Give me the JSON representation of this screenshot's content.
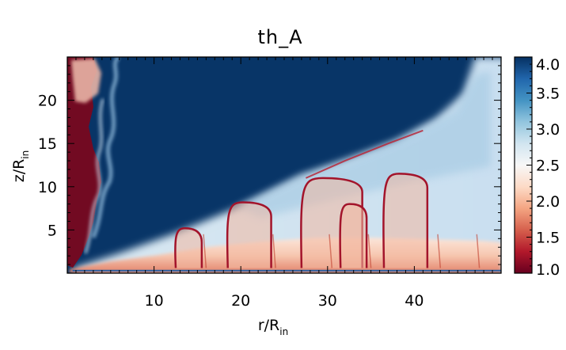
{
  "chart_data": {
    "type": "heatmap",
    "title": "th_A",
    "xlabel": {
      "base": "r/R",
      "sub": "in"
    },
    "ylabel": {
      "base": "z/R",
      "sub": "in"
    },
    "xlim": [
      0,
      50
    ],
    "ylim": [
      0,
      25
    ],
    "x_ticks": [
      10,
      20,
      30,
      40
    ],
    "x_tick_labels": [
      "10",
      "20",
      "30",
      "40"
    ],
    "y_ticks": [
      5,
      10,
      15,
      20
    ],
    "y_tick_labels": [
      "5",
      "10",
      "15",
      "20"
    ],
    "colorbar": {
      "range": [
        1.0,
        4.0
      ],
      "ticks": [
        1.0,
        1.5,
        2.0,
        2.5,
        3.0,
        3.5,
        4.0
      ],
      "tick_labels": [
        "1.0",
        "1.5",
        "2.0",
        "2.5",
        "3.0",
        "3.5",
        "4.0"
      ],
      "colormap": [
        "#67001f",
        "#b2182b",
        "#d6604d",
        "#f4a582",
        "#fddbc7",
        "#f7f7f7",
        "#d1e5f0",
        "#92c5de",
        "#4393c3",
        "#2166ac",
        "#053061"
      ]
    },
    "grid": false,
    "features": {
      "midplane_disk_value": 1.6,
      "upper_region_value": 4.0,
      "left_jet_value": 1.0,
      "transition_boundary": [
        [
          0.5,
          0.3
        ],
        [
          3,
          1.0
        ],
        [
          10,
          3.0
        ],
        [
          20,
          6.0
        ],
        [
          30,
          10.0
        ],
        [
          40,
          14.0
        ],
        [
          46,
          19.0
        ],
        [
          48,
          25.0
        ]
      ],
      "shock_arcs": [
        {
          "x0": 12.5,
          "x1": 15.5,
          "top": 5.2
        },
        {
          "x0": 18.5,
          "x1": 23.5,
          "top": 8.2
        },
        {
          "x0": 27.0,
          "x1": 34.0,
          "top": 11.0
        },
        {
          "x0": 31.5,
          "x1": 34.5,
          "top": 8.0
        },
        {
          "x0": 36.5,
          "x1": 41.5,
          "top": 11.5
        }
      ],
      "upper_shock_line": [
        [
          27.5,
          11.0
        ],
        [
          32,
          13.0
        ],
        [
          37,
          15.0
        ],
        [
          41,
          16.5
        ]
      ]
    }
  }
}
